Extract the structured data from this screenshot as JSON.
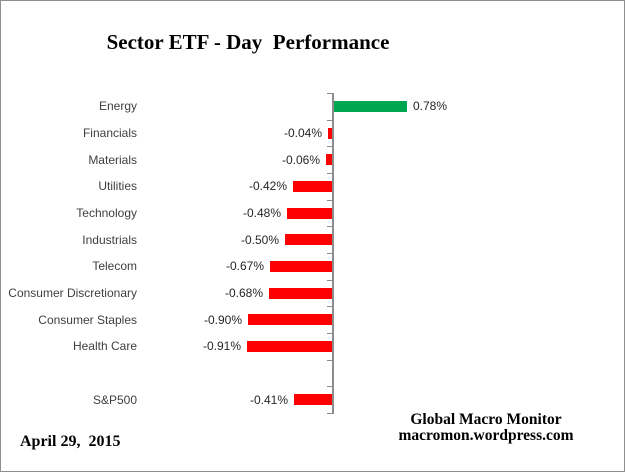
{
  "title": "Sector ETF - Day  Performance",
  "footer": {
    "date": "April 29,  2015",
    "source_line1": "Global Macro Monitor",
    "source_line2": "macromon.wordpress.com"
  },
  "colors": {
    "positive": "#00a650",
    "negative": "#ff0000",
    "axis": "#8c8c8c",
    "category_text": "#3f3f3f",
    "value_text": "#262626",
    "border": "#8f8f8f"
  },
  "chart_data": {
    "type": "bar",
    "orientation": "horizontal",
    "title": "Sector ETF - Day  Performance",
    "categories": [
      "Energy",
      "Financials",
      "Materials",
      "Utilities",
      "Technology",
      "Industrials",
      "Telecom",
      "Consumer Discretionary",
      "Consumer Staples",
      "Health Care",
      "",
      "S&P500"
    ],
    "values": [
      0.78,
      -0.04,
      -0.06,
      -0.42,
      -0.48,
      -0.5,
      -0.67,
      -0.68,
      -0.9,
      -0.91,
      null,
      -0.41
    ],
    "labels": [
      "0.78%",
      "-0.04%",
      "-0.06%",
      "-0.42%",
      "-0.48%",
      "-0.50%",
      "-0.67%",
      "-0.68%",
      "-0.90%",
      "-0.91%",
      "",
      "-0.41%"
    ],
    "unit": "%",
    "baseline": 0,
    "xlim": [
      -1.0,
      0.8
    ],
    "grid": false,
    "legend": false,
    "value_axis_labels_visible": false,
    "data_labels": "outside-end"
  }
}
